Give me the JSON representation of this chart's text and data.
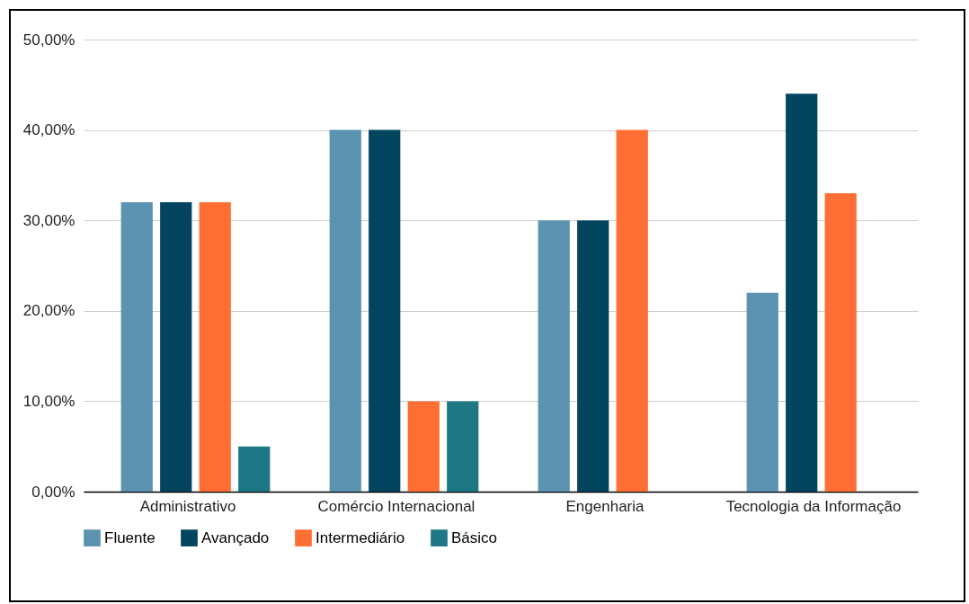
{
  "chart_data": {
    "type": "bar",
    "categories": [
      "Administrativo",
      "Comércio Internacional",
      "Engenharia",
      "Tecnologia da Informação"
    ],
    "series": [
      {
        "name": "Fluente",
        "color": "#5b93b1",
        "values": [
          32,
          40,
          30,
          22
        ]
      },
      {
        "name": "Avançado",
        "color": "#03455f",
        "values": [
          32,
          40,
          30,
          44
        ]
      },
      {
        "name": "Intermediário",
        "color": "#ff6f33",
        "values": [
          32,
          10,
          40,
          33
        ]
      },
      {
        "name": "Básico",
        "color": "#1e7784",
        "values": [
          5,
          10,
          null,
          null
        ]
      }
    ],
    "ylim": [
      0,
      50
    ],
    "yticks": [
      {
        "value": 0,
        "label": "0,00%"
      },
      {
        "value": 10,
        "label": "10,00%"
      },
      {
        "value": 20,
        "label": "20,00%"
      },
      {
        "value": 30,
        "label": "30,00%"
      },
      {
        "value": 40,
        "label": "40,00%"
      },
      {
        "value": 50,
        "label": "50,00%"
      }
    ],
    "grid": "y",
    "legend": "bottom"
  }
}
